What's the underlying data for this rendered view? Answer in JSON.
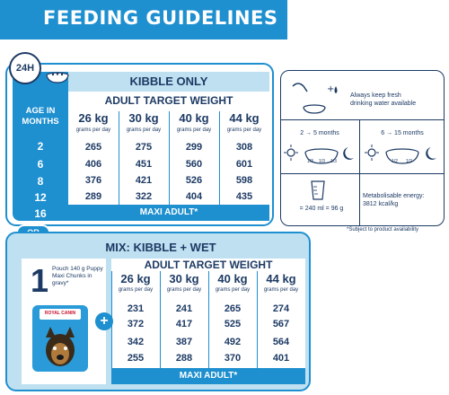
{
  "header": {
    "title": "FEEDING GUIDELINES"
  },
  "badge": {
    "label": "24H"
  },
  "kibble": {
    "title": "KIBBLE ONLY",
    "subtitle": "ADULT TARGET WEIGHT",
    "age_label_1": "AGE IN",
    "age_label_2": "MONTHS",
    "weights": [
      "26 kg",
      "30 kg",
      "40 kg",
      "44 kg"
    ],
    "unit": "grams per day",
    "rows": [
      {
        "age": "2",
        "values": [
          "265",
          "275",
          "299",
          "308"
        ]
      },
      {
        "age": "6",
        "values": [
          "406",
          "451",
          "560",
          "601"
        ]
      },
      {
        "age": "8",
        "values": [
          "376",
          "421",
          "526",
          "598"
        ]
      },
      {
        "age": "12",
        "values": [
          "289",
          "322",
          "404",
          "435"
        ]
      },
      {
        "age": "16",
        "values": []
      }
    ],
    "footer": "MAXI ADULT*"
  },
  "or_label": "OR",
  "info": {
    "water_text_1": "Always keep fresh",
    "water_text_2": "drinking water available",
    "meals_a": "2 → 5 months",
    "meals_b": "6 → 15 months",
    "measure": "= 240 ml = 96 g",
    "energy_1": "Metabolisable energy:",
    "energy_2": "3812 kcal/kg",
    "fraction_third": "1/3",
    "fraction_half": "1/2"
  },
  "note": "*Subject to product availability",
  "mix": {
    "title": "MIX: KIBBLE + WET",
    "subtitle": "ADULT TARGET WEIGHT",
    "pouch_number": "1",
    "pouch_text": "Pouch 140 g Puppy Maxi Chunks in gravy*",
    "plus": "+",
    "brand": "ROYAL CANIN",
    "weights": [
      "26 kg",
      "30 kg",
      "40 kg",
      "44 kg"
    ],
    "unit": "grams per day",
    "rows": [
      [
        "231",
        "241",
        "265",
        "274"
      ],
      [
        "372",
        "417",
        "525",
        "567"
      ],
      [
        "342",
        "387",
        "492",
        "564"
      ],
      [
        "255",
        "288",
        "370",
        "401"
      ]
    ],
    "footer": "MAXI ADULT*"
  }
}
